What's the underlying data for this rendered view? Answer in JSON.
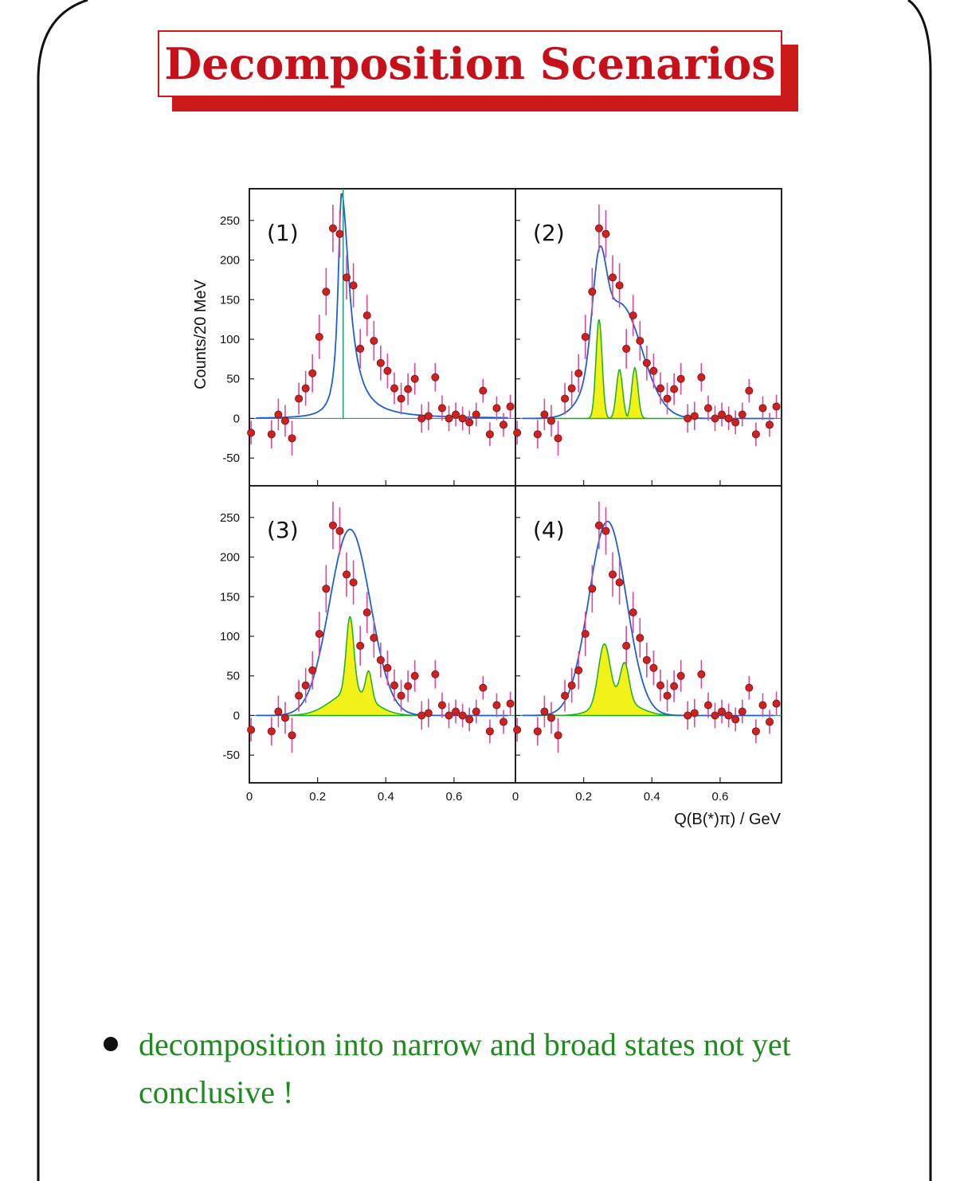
{
  "slide": {
    "title": "Decomposition Scenarios",
    "bullet": "decomposition into narrow and broad states not yet conclusive !",
    "colors": {
      "title": "#c8101a",
      "title_shadow": "#cc1a1a",
      "bullet_text": "#1f8a1f",
      "frame": "#111111"
    }
  },
  "chart_data": {
    "type": "scatter",
    "ylabel": "Counts/20 MeV",
    "xlabel": "Q(B(*)π) / GeV",
    "xlim": [
      0,
      0.78
    ],
    "ylim": [
      -85,
      290
    ],
    "x_ticks": [
      "0",
      "0.2",
      "0.4",
      "0.6"
    ],
    "y_ticks": [
      "-50",
      "0",
      "50",
      "100",
      "150",
      "200",
      "250"
    ],
    "colors": {
      "data_points": "#cc2222",
      "fit_curve": "#1f5fd6",
      "components_fill": "#f2f21a",
      "components_edge": "#1bb01b"
    },
    "data": {
      "x": [
        0.005,
        0.065,
        0.085,
        0.105,
        0.125,
        0.145,
        0.165,
        0.185,
        0.205,
        0.225,
        0.245,
        0.265,
        0.285,
        0.305,
        0.325,
        0.345,
        0.365,
        0.385,
        0.405,
        0.425,
        0.445,
        0.465,
        0.485,
        0.505,
        0.525,
        0.545,
        0.565,
        0.585,
        0.605,
        0.625,
        0.645,
        0.665,
        0.685,
        0.705,
        0.725,
        0.745,
        0.765
      ],
      "y": [
        -18,
        -20,
        5,
        -3,
        -25,
        25,
        38,
        57,
        103,
        160,
        240,
        233,
        178,
        168,
        88,
        130,
        98,
        70,
        60,
        38,
        25,
        37,
        50,
        0,
        3,
        52,
        13,
        0,
        5,
        0,
        -5,
        5,
        35,
        -20,
        13,
        -8,
        15
      ],
      "err": [
        15,
        18,
        20,
        20,
        22,
        20,
        22,
        24,
        28,
        30,
        30,
        30,
        28,
        28,
        25,
        26,
        25,
        22,
        22,
        20,
        20,
        20,
        20,
        18,
        18,
        18,
        16,
        16,
        15,
        15,
        15,
        15,
        15,
        15,
        15,
        15,
        15
      ]
    },
    "panels": [
      {
        "label": "(1)",
        "description": "single narrow peak",
        "fit": {
          "narrow": [
            {
              "mean": 0.27,
              "width": 0.012,
              "height": 285,
              "tail": 0.028
            }
          ]
        },
        "marker_line_x": 0.275
      },
      {
        "label": "(2)",
        "description": "three narrow peaks plus broad",
        "fit": {
          "narrow": [
            {
              "mean": 0.245,
              "width": 0.009,
              "height": 125
            },
            {
              "mean": 0.305,
              "width": 0.009,
              "height": 62
            },
            {
              "mean": 0.35,
              "width": 0.009,
              "height": 64
            }
          ],
          "broad": {
            "mean": 0.305,
            "width": 0.065,
            "height": 145
          }
        }
      },
      {
        "label": "(3)",
        "description": "broad states with two narrow peaks",
        "fit": {
          "narrow": [
            {
              "mean": 0.295,
              "width": 0.011,
              "height": 95
            },
            {
              "mean": 0.35,
              "width": 0.009,
              "height": 35
            }
          ],
          "broad": {
            "mean": 0.295,
            "width": 0.06,
            "height": 235
          },
          "component_base": {
            "mean": 0.3,
            "width": 0.06,
            "height": 30
          }
        }
      },
      {
        "label": "(4)",
        "description": "two peaks with broad envelope",
        "fit": {
          "narrow": [
            {
              "mean": 0.26,
              "width": 0.017,
              "height": 75
            },
            {
              "mean": 0.32,
              "width": 0.013,
              "height": 48
            }
          ],
          "broad": {
            "mean": 0.27,
            "width": 0.055,
            "height": 245
          },
          "component_base": {
            "mean": 0.3,
            "width": 0.055,
            "height": 20
          }
        }
      }
    ]
  }
}
